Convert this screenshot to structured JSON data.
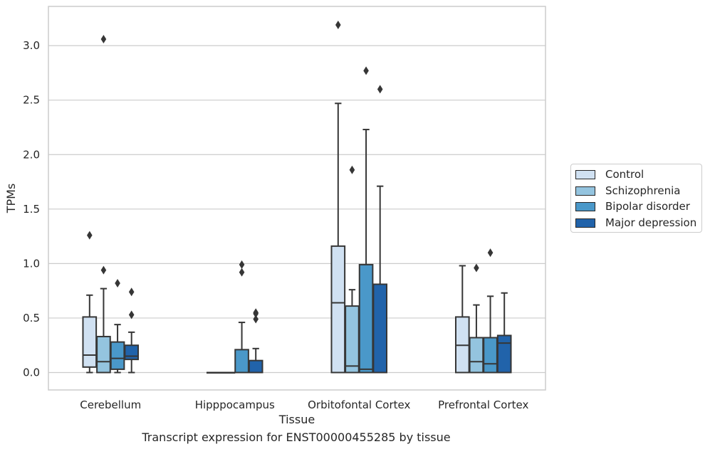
{
  "chart_data": {
    "type": "box",
    "xlabel": "Tissue",
    "ylabel": "TPMs",
    "ylim": [
      -0.16,
      3.36
    ],
    "yticks": [
      0.0,
      0.5,
      1.0,
      1.5,
      2.0,
      2.5,
      3.0
    ],
    "ytick_labels": [
      "0.0",
      "0.5",
      "1.0",
      "1.5",
      "2.0",
      "2.5",
      "3.0"
    ],
    "grid": "horizontal",
    "legend_position": "right-center",
    "categories": [
      "Cerebellum",
      "Hipppocampus",
      "Orbitofontal Cortex",
      "Prefrontal Cortex"
    ],
    "series": [
      {
        "name": "Control",
        "color": "#d0e1f2",
        "boxes": [
          {
            "whislo": 0.0,
            "q1": 0.05,
            "med": 0.16,
            "q3": 0.51,
            "whishi": 0.71,
            "fliers": [
              1.26
            ]
          },
          {
            "whislo": 0.0,
            "q1": 0.0,
            "med": 0.0,
            "q3": 0.0,
            "whishi": 0.0,
            "fliers": []
          },
          {
            "whislo": 0.0,
            "q1": 0.0,
            "med": 0.64,
            "q3": 1.16,
            "whishi": 2.47,
            "fliers": [
              3.19
            ]
          },
          {
            "whislo": 0.0,
            "q1": 0.0,
            "med": 0.25,
            "q3": 0.51,
            "whishi": 0.98,
            "fliers": []
          }
        ]
      },
      {
        "name": "Schizophrenia",
        "color": "#94c4df",
        "boxes": [
          {
            "whislo": 0.0,
            "q1": 0.0,
            "med": 0.1,
            "q3": 0.33,
            "whishi": 0.77,
            "fliers": [
              0.94,
              3.06
            ]
          },
          {
            "whislo": 0.0,
            "q1": 0.0,
            "med": 0.0,
            "q3": 0.0,
            "whishi": 0.0,
            "fliers": []
          },
          {
            "whislo": 0.0,
            "q1": 0.0,
            "med": 0.06,
            "q3": 0.61,
            "whishi": 0.76,
            "fliers": [
              1.86
            ]
          },
          {
            "whislo": 0.0,
            "q1": 0.0,
            "med": 0.1,
            "q3": 0.32,
            "whishi": 0.62,
            "fliers": [
              0.96
            ]
          }
        ]
      },
      {
        "name": "Bipolar disorder",
        "color": "#4a98c9",
        "boxes": [
          {
            "whislo": 0.0,
            "q1": 0.03,
            "med": 0.13,
            "q3": 0.28,
            "whishi": 0.44,
            "fliers": [
              0.82
            ]
          },
          {
            "whislo": 0.0,
            "q1": 0.0,
            "med": 0.0,
            "q3": 0.21,
            "whishi": 0.46,
            "fliers": [
              0.92,
              0.99
            ]
          },
          {
            "whislo": 0.0,
            "q1": 0.0,
            "med": 0.03,
            "q3": 0.99,
            "whishi": 2.23,
            "fliers": [
              2.77
            ]
          },
          {
            "whislo": 0.0,
            "q1": 0.0,
            "med": 0.08,
            "q3": 0.32,
            "whishi": 0.7,
            "fliers": [
              1.1
            ]
          }
        ]
      },
      {
        "name": "Major depression",
        "color": "#2163aa",
        "boxes": [
          {
            "whislo": 0.0,
            "q1": 0.12,
            "med": 0.15,
            "q3": 0.25,
            "whishi": 0.37,
            "fliers": [
              0.53,
              0.74
            ]
          },
          {
            "whislo": 0.0,
            "q1": 0.0,
            "med": 0.0,
            "q3": 0.11,
            "whishi": 0.22,
            "fliers": [
              0.49,
              0.54,
              0.55
            ]
          },
          {
            "whislo": 0.0,
            "q1": 0.0,
            "med": 0.0,
            "q3": 0.81,
            "whishi": 1.71,
            "fliers": [
              2.6
            ]
          },
          {
            "whislo": 0.0,
            "q1": 0.0,
            "med": 0.27,
            "q3": 0.34,
            "whishi": 0.73,
            "fliers": []
          }
        ]
      }
    ]
  },
  "caption": "Transcript expression for ENST00000455285 by tissue"
}
